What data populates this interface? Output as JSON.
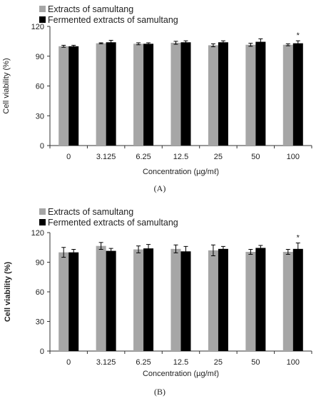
{
  "chart_data": [
    {
      "type": "bar",
      "panel_label": "(A)",
      "categories": [
        "0",
        "3.125",
        "6.25",
        "12.5",
        "25",
        "50",
        "100"
      ],
      "ylabel": "Cell viability (%)",
      "xlabel": "Concentration (µg/mℓ)",
      "ylim": [
        0,
        120
      ],
      "yticks": [
        0,
        30,
        60,
        90,
        120
      ],
      "grid": false,
      "legend_position": "top-left",
      "series": [
        {
          "name": "Extracts of samultang",
          "color": "#a6a6a6",
          "values": [
            100,
            103,
            102.5,
            103.5,
            101,
            101.5,
            101.5
          ],
          "errors": [
            1,
            0.5,
            1,
            1.5,
            1.5,
            1.5,
            1
          ]
        },
        {
          "name": "Fermented extracts of samultang",
          "color": "#000000",
          "values": [
            100,
            104,
            102.5,
            104,
            104,
            104.5,
            103
          ],
          "errors": [
            1,
            2,
            1,
            1.5,
            1.5,
            3,
            2.5
          ]
        }
      ],
      "annotations": [
        {
          "category": "100",
          "series": 1,
          "text": "*"
        }
      ]
    },
    {
      "type": "bar",
      "panel_label": "(B)",
      "categories": [
        "0",
        "3.125",
        "6.25",
        "12.5",
        "25",
        "50",
        "100"
      ],
      "ylabel": "Cell viability (%)",
      "xlabel": "Concentration (µg/mℓ)",
      "ylim": [
        0,
        120
      ],
      "yticks": [
        0,
        30,
        60,
        90,
        120
      ],
      "grid": false,
      "legend_position": "top-left",
      "series": [
        {
          "name": "Extracts of samultang",
          "color": "#a6a6a6",
          "values": [
            100,
            106.5,
            103,
            103.5,
            102,
            100.5,
            100.5
          ],
          "errors": [
            5,
            3.5,
            3.5,
            4,
            5.5,
            2.5,
            2.5
          ]
        },
        {
          "name": "Fermented extracts of samultang",
          "color": "#000000",
          "values": [
            100,
            101.5,
            104,
            101,
            103.5,
            104.5,
            103.5
          ],
          "errors": [
            3,
            2.5,
            4,
            5,
            2.5,
            2.5,
            6
          ]
        }
      ],
      "annotations": [
        {
          "category": "100",
          "series": 1,
          "text": "*"
        }
      ]
    }
  ]
}
